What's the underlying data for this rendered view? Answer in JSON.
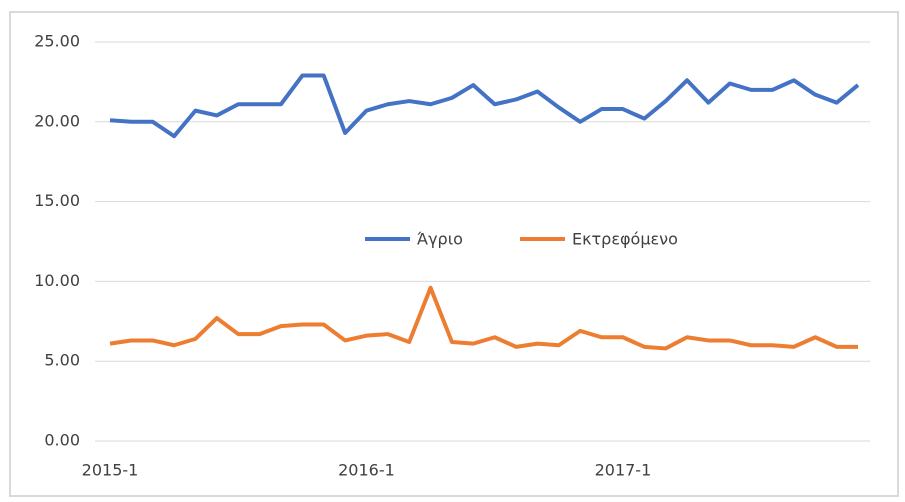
{
  "chart_data": {
    "type": "line",
    "categories": [
      "2015-1",
      null,
      null,
      null,
      null,
      null,
      null,
      null,
      null,
      null,
      null,
      null,
      "2016-1",
      null,
      null,
      null,
      null,
      null,
      null,
      null,
      null,
      null,
      null,
      null,
      "2017-1",
      null,
      null,
      null,
      null,
      null,
      null,
      null,
      null,
      null,
      null,
      null
    ],
    "series": [
      {
        "name": "Άγριο",
        "color": "#4472c4",
        "values": [
          20.1,
          20.0,
          20.0,
          19.1,
          20.7,
          20.4,
          21.1,
          21.1,
          21.1,
          22.9,
          22.9,
          19.3,
          20.7,
          21.1,
          21.3,
          21.1,
          21.5,
          22.3,
          21.1,
          21.4,
          21.9,
          20.9,
          20.0,
          20.8,
          20.8,
          20.2,
          21.3,
          22.6,
          21.2,
          22.4,
          22.0,
          22.0,
          22.6,
          21.7,
          21.2,
          22.3
        ]
      },
      {
        "name": "Εκτρεφόμενο",
        "color": "#ed7d31",
        "values": [
          6.1,
          6.3,
          6.3,
          6.0,
          6.4,
          7.7,
          6.7,
          6.7,
          7.2,
          7.3,
          7.3,
          6.3,
          6.6,
          6.7,
          6.2,
          9.6,
          6.2,
          6.1,
          6.5,
          5.9,
          6.1,
          6.0,
          6.9,
          6.5,
          6.5,
          5.9,
          5.8,
          6.5,
          6.3,
          6.3,
          6.0,
          6.0,
          5.9,
          6.5,
          5.9,
          5.9
        ]
      }
    ],
    "ylim": [
      0,
      25
    ],
    "yticks": [
      {
        "value": 0,
        "label": "0.00"
      },
      {
        "value": 5,
        "label": "5.00"
      },
      {
        "value": 10,
        "label": "10.00"
      },
      {
        "value": 15,
        "label": "15.00"
      },
      {
        "value": 20,
        "label": "20.00"
      },
      {
        "value": 25,
        "label": "25.00"
      }
    ],
    "grid": true,
    "legend": "center"
  }
}
